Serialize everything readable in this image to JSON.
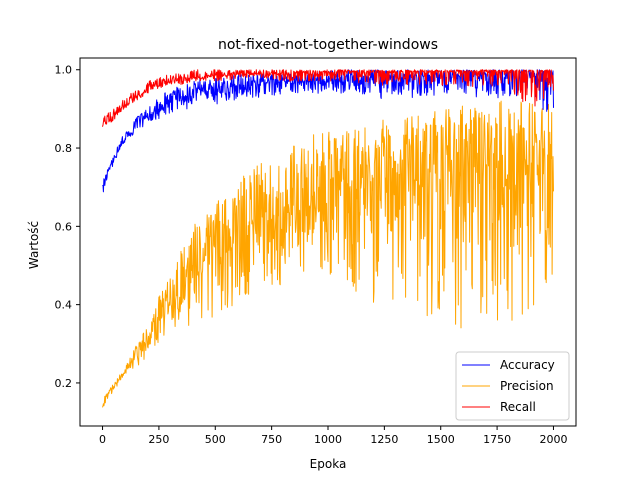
{
  "chart_data": {
    "type": "line",
    "title": "not-fixed-not-together-windows",
    "xlabel": "Epoka",
    "ylabel": "Wartość",
    "xlim": [
      -100,
      2100
    ],
    "ylim": [
      0.09,
      1.03
    ],
    "x_ticks": [
      0,
      250,
      500,
      750,
      1000,
      1250,
      1500,
      1750,
      2000
    ],
    "y_ticks": [
      0.2,
      0.4,
      0.6,
      0.8,
      1.0
    ],
    "x_tick_labels": [
      "0",
      "250",
      "500",
      "750",
      "1000",
      "1250",
      "1500",
      "1750",
      "2000"
    ],
    "y_tick_labels": [
      "0.2",
      "0.4",
      "0.6",
      "0.8",
      "1.0"
    ],
    "legend_position": "lower-right",
    "grid": false,
    "series": [
      {
        "name": "Accuracy",
        "color": "#0000ff",
        "x": [
          0,
          25,
          50,
          75,
          100,
          125,
          150,
          175,
          200,
          250,
          300,
          350,
          400,
          450,
          500,
          550,
          600,
          700,
          800,
          900,
          1000,
          1100,
          1200,
          1300,
          1400,
          1500,
          1600,
          1700,
          1800,
          1900,
          2000
        ],
        "center": [
          0.7,
          0.74,
          0.77,
          0.8,
          0.82,
          0.84,
          0.86,
          0.87,
          0.88,
          0.9,
          0.92,
          0.93,
          0.94,
          0.945,
          0.95,
          0.955,
          0.96,
          0.965,
          0.97,
          0.972,
          0.975,
          0.978,
          0.98,
          0.982,
          0.984,
          0.985,
          0.986,
          0.987,
          0.988,
          0.989,
          0.99
        ],
        "low": [
          0.68,
          0.73,
          0.76,
          0.79,
          0.81,
          0.83,
          0.84,
          0.85,
          0.86,
          0.87,
          0.88,
          0.89,
          0.9,
          0.91,
          0.91,
          0.92,
          0.92,
          0.93,
          0.93,
          0.94,
          0.94,
          0.94,
          0.93,
          0.92,
          0.93,
          0.93,
          0.92,
          0.93,
          0.92,
          0.93,
          0.87
        ],
        "high": [
          0.72,
          0.75,
          0.78,
          0.82,
          0.84,
          0.86,
          0.88,
          0.89,
          0.9,
          0.93,
          0.95,
          0.96,
          0.97,
          0.98,
          0.98,
          0.98,
          0.99,
          0.99,
          0.99,
          0.99,
          1.0,
          1.0,
          1.0,
          1.0,
          1.0,
          1.0,
          1.0,
          1.0,
          1.0,
          1.0,
          1.0
        ]
      },
      {
        "name": "Precision",
        "color": "#ffa500",
        "x": [
          0,
          25,
          50,
          75,
          100,
          125,
          150,
          175,
          200,
          250,
          300,
          350,
          400,
          450,
          500,
          550,
          600,
          700,
          800,
          900,
          1000,
          1100,
          1200,
          1300,
          1400,
          1500,
          1600,
          1700,
          1800,
          1900,
          2000
        ],
        "center": [
          0.14,
          0.17,
          0.19,
          0.21,
          0.23,
          0.25,
          0.27,
          0.29,
          0.31,
          0.36,
          0.4,
          0.44,
          0.47,
          0.5,
          0.52,
          0.54,
          0.56,
          0.59,
          0.62,
          0.65,
          0.67,
          0.69,
          0.71,
          0.72,
          0.73,
          0.74,
          0.75,
          0.76,
          0.77,
          0.78,
          0.78
        ],
        "low": [
          0.13,
          0.16,
          0.18,
          0.2,
          0.22,
          0.23,
          0.24,
          0.25,
          0.27,
          0.3,
          0.32,
          0.34,
          0.35,
          0.36,
          0.37,
          0.38,
          0.4,
          0.42,
          0.45,
          0.48,
          0.48,
          0.42,
          0.4,
          0.4,
          0.38,
          0.36,
          0.33,
          0.35,
          0.34,
          0.35,
          0.34
        ],
        "high": [
          0.16,
          0.18,
          0.2,
          0.22,
          0.24,
          0.27,
          0.3,
          0.33,
          0.36,
          0.42,
          0.48,
          0.54,
          0.6,
          0.64,
          0.66,
          0.68,
          0.72,
          0.76,
          0.8,
          0.83,
          0.85,
          0.86,
          0.87,
          0.88,
          0.89,
          0.9,
          0.91,
          0.92,
          0.93,
          0.93,
          0.94
        ]
      },
      {
        "name": "Recall",
        "color": "#ff0000",
        "x": [
          0,
          25,
          50,
          75,
          100,
          125,
          150,
          175,
          200,
          250,
          300,
          350,
          400,
          450,
          500,
          550,
          600,
          700,
          800,
          900,
          1000,
          1100,
          1200,
          1300,
          1400,
          1500,
          1600,
          1700,
          1800,
          1900,
          2000
        ],
        "center": [
          0.86,
          0.87,
          0.88,
          0.9,
          0.91,
          0.92,
          0.93,
          0.94,
          0.95,
          0.96,
          0.97,
          0.975,
          0.98,
          0.982,
          0.985,
          0.987,
          0.989,
          0.99,
          0.991,
          0.992,
          0.993,
          0.993,
          0.994,
          0.994,
          0.995,
          0.995,
          0.995,
          0.996,
          0.996,
          0.996,
          0.997
        ],
        "low": [
          0.85,
          0.86,
          0.87,
          0.89,
          0.9,
          0.91,
          0.92,
          0.93,
          0.94,
          0.95,
          0.96,
          0.96,
          0.97,
          0.97,
          0.97,
          0.97,
          0.98,
          0.98,
          0.97,
          0.97,
          0.97,
          0.97,
          0.96,
          0.96,
          0.96,
          0.96,
          0.95,
          0.96,
          0.95,
          0.88,
          0.94
        ],
        "high": [
          0.88,
          0.89,
          0.9,
          0.92,
          0.93,
          0.94,
          0.95,
          0.96,
          0.97,
          0.98,
          0.99,
          0.99,
          1.0,
          1.0,
          1.0,
          1.0,
          1.0,
          1.0,
          1.0,
          1.0,
          1.0,
          1.0,
          1.0,
          1.0,
          1.0,
          1.0,
          1.0,
          1.0,
          1.0,
          1.0,
          1.0
        ]
      }
    ]
  }
}
